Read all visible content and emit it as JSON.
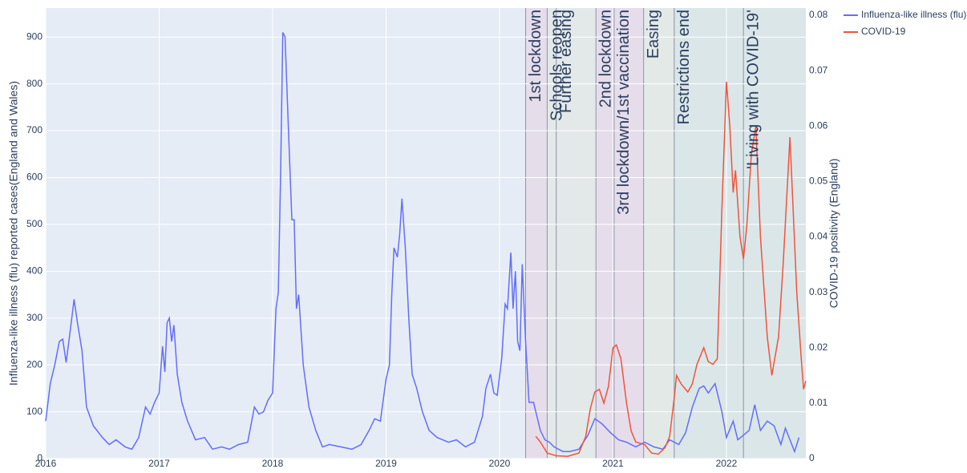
{
  "chart_data": {
    "type": "line",
    "ylabel": "Influenza-like illness (flu) reported cases(England and Wales)",
    "y2label": "COVID-19 positivity (England)",
    "xlim": [
      2016,
      2022.7
    ],
    "xticks": [
      2016,
      2017,
      2018,
      2019,
      2020,
      2021,
      2022
    ],
    "ylim": [
      0,
      962
    ],
    "yticks": [
      0,
      100,
      200,
      300,
      400,
      500,
      600,
      700,
      800,
      900
    ],
    "y2lim": [
      0,
      0.0813
    ],
    "y2ticks": [
      0,
      0.01,
      0.02,
      0.03,
      0.04,
      0.05,
      0.06,
      0.07,
      0.08
    ],
    "grid": true,
    "legend": "top-right",
    "events": [
      {
        "x": 2020.23,
        "label": "1st lockdown",
        "color": "#e6dcea"
      },
      {
        "x": 2020.42,
        "label": "Schools reopen",
        "color": "#e2e8e8"
      },
      {
        "x": 2020.5,
        "label": "Further easing",
        "color": "#e2e8e8"
      },
      {
        "x": 2020.85,
        "label": "2nd lockdown",
        "color": "#e6dcea"
      },
      {
        "x": 2021.01,
        "label": "3rd lockdown/1st vaccination",
        "color": "#e6dcea"
      },
      {
        "x": 2021.27,
        "label": "Easing",
        "color": "#e2e9e6"
      },
      {
        "x": 2021.54,
        "label": "Restrictions end",
        "color": "#d9e6e8"
      },
      {
        "x": 2022.15,
        "label": "'Living with COVID-19'",
        "color": "#d9e6e8"
      }
    ],
    "series": [
      {
        "name": "Influenza-like illness (flu)",
        "color": "#636efa",
        "x": [
          2016.0,
          2016.04,
          2016.08,
          2016.12,
          2016.15,
          2016.18,
          2016.22,
          2016.25,
          2016.28,
          2016.32,
          2016.36,
          2016.42,
          2016.5,
          2016.56,
          2016.62,
          2016.7,
          2016.76,
          2016.82,
          2016.88,
          2016.92,
          2016.96,
          2017.0,
          2017.03,
          2017.05,
          2017.07,
          2017.09,
          2017.11,
          2017.13,
          2017.16,
          2017.2,
          2017.25,
          2017.32,
          2017.4,
          2017.47,
          2017.55,
          2017.62,
          2017.7,
          2017.78,
          2017.84,
          2017.88,
          2017.92,
          2017.96,
          2018.0,
          2018.03,
          2018.05,
          2018.07,
          2018.09,
          2018.11,
          2018.14,
          2018.17,
          2018.19,
          2018.21,
          2018.23,
          2018.27,
          2018.32,
          2018.38,
          2018.44,
          2018.5,
          2018.6,
          2018.7,
          2018.78,
          2018.85,
          2018.9,
          2018.95,
          2019.0,
          2019.03,
          2019.05,
          2019.07,
          2019.1,
          2019.12,
          2019.14,
          2019.17,
          2019.2,
          2019.23,
          2019.27,
          2019.32,
          2019.38,
          2019.45,
          2019.55,
          2019.62,
          2019.7,
          2019.78,
          2019.85,
          2019.88,
          2019.92,
          2019.95,
          2019.98,
          2020.02,
          2020.05,
          2020.07,
          2020.1,
          2020.12,
          2020.14,
          2020.16,
          2020.18,
          2020.2,
          2020.23,
          2020.26,
          2020.3,
          2020.36,
          2020.4,
          2020.44,
          2020.48,
          2020.52,
          2020.56,
          2020.62,
          2020.7,
          2020.78,
          2020.84,
          2020.9,
          2020.98,
          2021.05,
          2021.12,
          2021.2,
          2021.28,
          2021.36,
          2021.44,
          2021.5,
          2021.58,
          2021.64,
          2021.7,
          2021.76,
          2021.8,
          2021.84,
          2021.9,
          2021.96,
          2022.0,
          2022.06,
          2022.1,
          2022.15,
          2022.2,
          2022.25,
          2022.3,
          2022.36,
          2022.42,
          2022.48,
          2022.52,
          2022.56,
          2022.6,
          2022.64
        ],
        "values": [
          80,
          160,
          200,
          250,
          255,
          205,
          280,
          340,
          290,
          230,
          110,
          70,
          45,
          30,
          40,
          25,
          20,
          45,
          110,
          95,
          120,
          140,
          240,
          185,
          290,
          300,
          250,
          285,
          180,
          120,
          80,
          40,
          45,
          20,
          25,
          20,
          30,
          35,
          110,
          95,
          100,
          125,
          140,
          320,
          355,
          600,
          910,
          900,
          700,
          510,
          510,
          320,
          350,
          200,
          110,
          60,
          25,
          30,
          25,
          20,
          30,
          60,
          85,
          80,
          170,
          200,
          350,
          450,
          430,
          480,
          555,
          450,
          300,
          180,
          150,
          100,
          60,
          45,
          35,
          40,
          25,
          35,
          90,
          150,
          180,
          140,
          135,
          215,
          330,
          320,
          440,
          320,
          400,
          250,
          230,
          415,
          250,
          120,
          120,
          60,
          40,
          35,
          25,
          20,
          15,
          15,
          20,
          50,
          85,
          75,
          55,
          40,
          35,
          25,
          35,
          25,
          20,
          40,
          30,
          55,
          110,
          150,
          155,
          140,
          160,
          100,
          45,
          80,
          40,
          50,
          60,
          115,
          60,
          80,
          70,
          30,
          65,
          40,
          15,
          45
        ]
      },
      {
        "name": "COVID-19",
        "color": "#ef553b",
        "axis": "y2",
        "x": [
          2020.32,
          2020.36,
          2020.42,
          2020.5,
          2020.6,
          2020.7,
          2020.76,
          2020.8,
          2020.84,
          2020.88,
          2020.92,
          2020.96,
          2021.0,
          2021.03,
          2021.07,
          2021.12,
          2021.16,
          2021.2,
          2021.28,
          2021.34,
          2021.4,
          2021.46,
          2021.5,
          2021.54,
          2021.56,
          2021.6,
          2021.66,
          2021.7,
          2021.74,
          2021.8,
          2021.84,
          2021.88,
          2021.92,
          2021.96,
          2022.0,
          2022.03,
          2022.06,
          2022.08,
          2022.12,
          2022.15,
          2022.18,
          2022.22,
          2022.26,
          2022.3,
          2022.36,
          2022.4,
          2022.46,
          2022.5,
          2022.56,
          2022.62,
          2022.66,
          2022.68,
          2022.7
        ],
        "values": [
          0.004,
          0.003,
          0.001,
          0.0005,
          0.0004,
          0.001,
          0.004,
          0.009,
          0.012,
          0.0125,
          0.01,
          0.013,
          0.02,
          0.0205,
          0.018,
          0.01,
          0.005,
          0.003,
          0.0025,
          0.001,
          0.0008,
          0.002,
          0.004,
          0.011,
          0.015,
          0.0135,
          0.012,
          0.0135,
          0.017,
          0.02,
          0.0175,
          0.017,
          0.018,
          0.045,
          0.068,
          0.06,
          0.048,
          0.052,
          0.04,
          0.036,
          0.042,
          0.055,
          0.06,
          0.04,
          0.022,
          0.015,
          0.022,
          0.035,
          0.058,
          0.03,
          0.018,
          0.0125,
          0.014
        ]
      }
    ]
  }
}
